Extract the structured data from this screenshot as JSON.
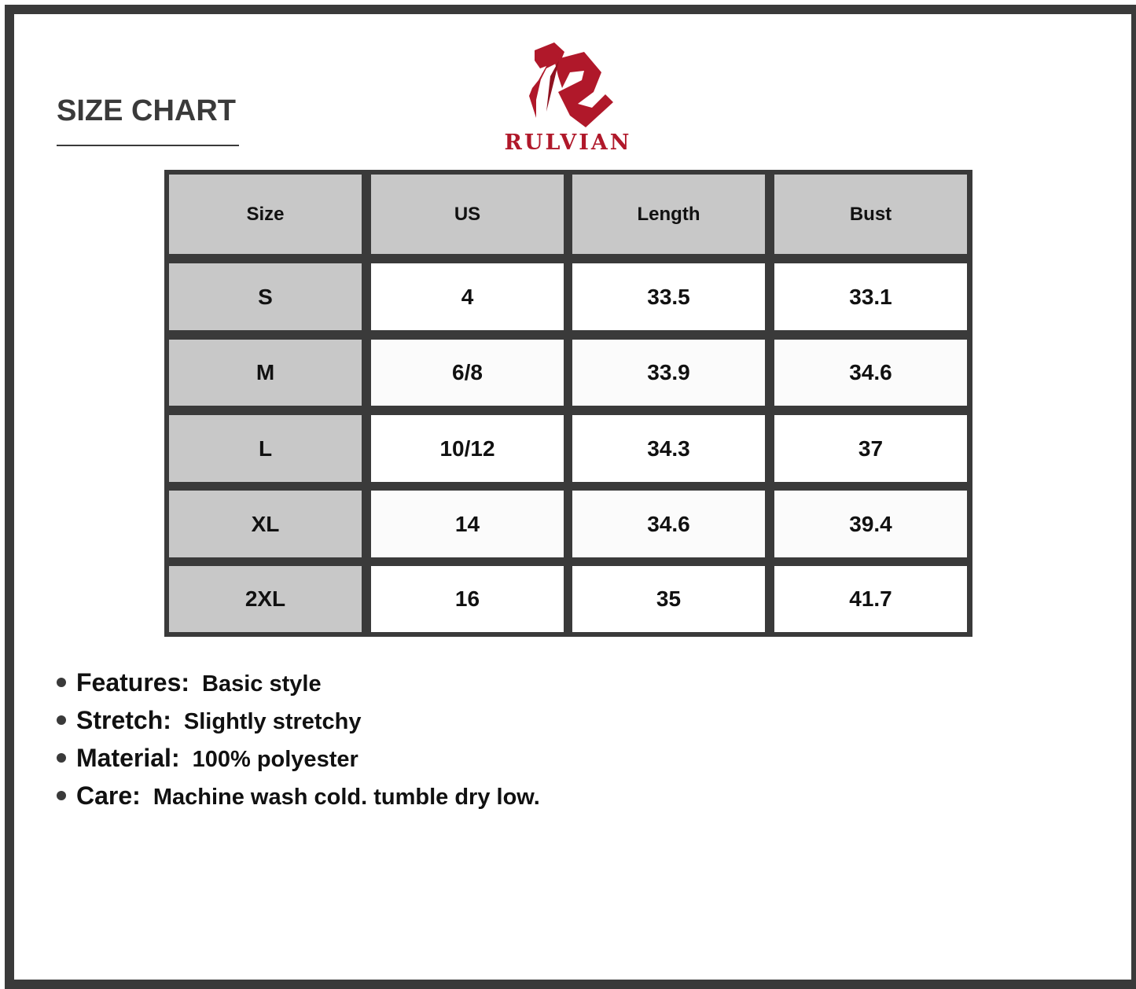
{
  "header": {
    "title": "SIZE CHART",
    "brand": "RULVIAN"
  },
  "colors": {
    "brand": "#b0182a",
    "border": "#3a3a3a",
    "header_cell": "#c8c8c8"
  },
  "table": {
    "columns": [
      "Size",
      "US",
      "Length",
      "Bust"
    ],
    "rows": [
      [
        "S",
        "4",
        "33.5",
        "33.1"
      ],
      [
        "M",
        "6/8",
        "33.9",
        "34.6"
      ],
      [
        "L",
        "10/12",
        "34.3",
        "37"
      ],
      [
        "XL",
        "14",
        "34.6",
        "39.4"
      ],
      [
        "2XL",
        "16",
        "35",
        "41.7"
      ]
    ]
  },
  "details": [
    {
      "label": "Features:",
      "value": "Basic style"
    },
    {
      "label": "Stretch:",
      "value": "Slightly stretchy"
    },
    {
      "label": "Material:",
      "value": "100% polyester"
    },
    {
      "label": "Care:",
      "value": "Machine wash cold. tumble dry low."
    }
  ]
}
